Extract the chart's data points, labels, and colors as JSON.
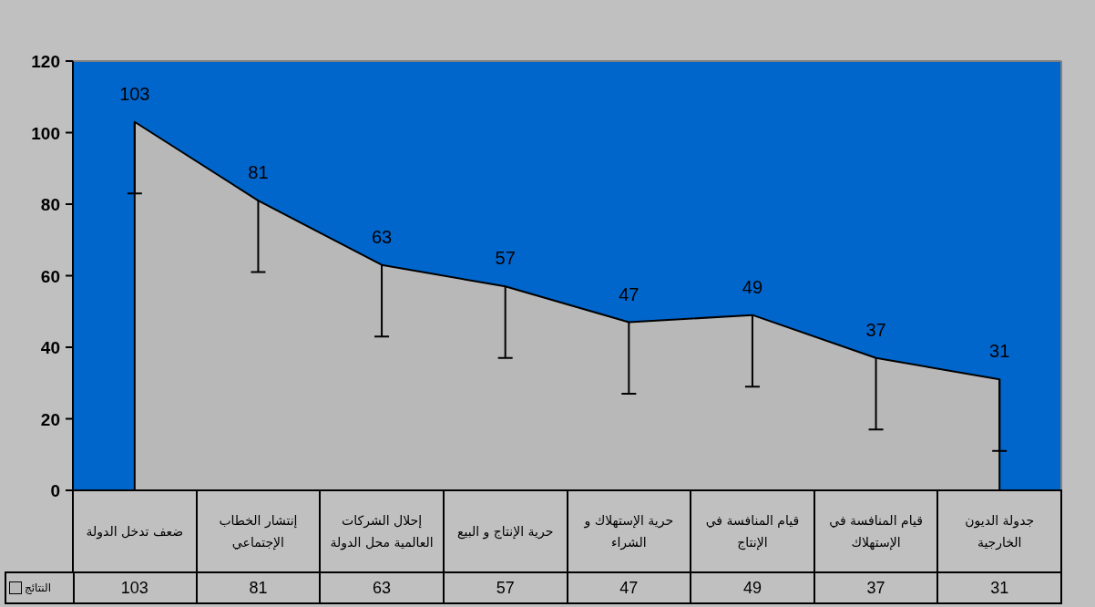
{
  "chart_data": {
    "type": "area",
    "categories": [
      "ضعف تدخل الدولة",
      "إنتشار الخطاب الإجتماعي",
      "إحلال الشركات العالمية محل الدولة",
      "حرية الإنتاج و البيع",
      "حرية الإستهلاك و الشراء",
      "قيام المنافسة في الإنتاج",
      "قيام المنافسة في الإستهلاك",
      "جدولة الديون الخارجية"
    ],
    "series": [
      {
        "name": "النتائج",
        "color": "#b8b8b8",
        "values": [
          103,
          81,
          63,
          57,
          47,
          49,
          37,
          31
        ],
        "value_labels": [
          "103",
          "81",
          "63",
          "57",
          "47",
          "49",
          "37",
          "31"
        ],
        "errors": [
          [
            83,
            103
          ],
          [
            61,
            81
          ],
          [
            43,
            63
          ],
          [
            37,
            57
          ],
          [
            27,
            47
          ],
          [
            29,
            49
          ],
          [
            17,
            37
          ],
          [
            11,
            31
          ]
        ]
      }
    ],
    "ylim": [
      0,
      120
    ],
    "yticks": [
      0,
      20,
      40,
      60,
      80,
      100,
      120
    ],
    "data_labels": true,
    "legend": "bottom left",
    "grid": false
  }
}
